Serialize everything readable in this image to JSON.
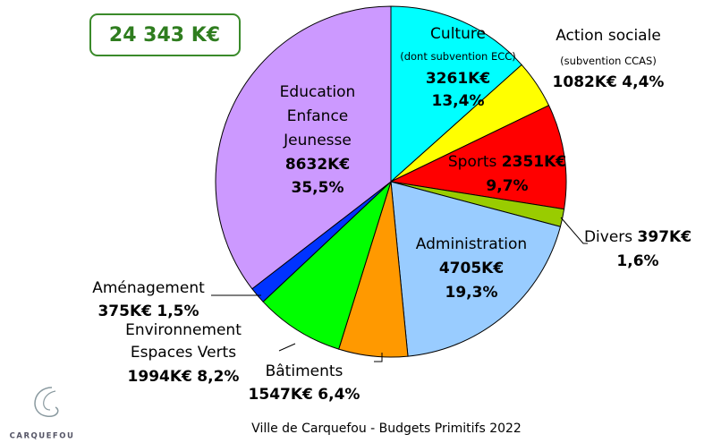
{
  "chart_data": {
    "type": "pie",
    "title": "24 343 K€",
    "footer": "Ville de Carquefou - Budgets Primitifs 2022",
    "logo_text": "CARQUEFOU",
    "categories": [
      [
        "Culture"
      ],
      [
        "Action sociale"
      ],
      [
        "Sports"
      ],
      [
        "Divers"
      ],
      [
        "Administration"
      ],
      [
        "Bâtiments"
      ],
      [
        "Environnement",
        "Espaces Verts"
      ],
      [
        "Aménagement"
      ],
      [
        "Education",
        "Enfance",
        "Jeunesse"
      ]
    ],
    "notes": [
      "(dont subvention ECC)",
      "(subvention CCAS)",
      null,
      null,
      null,
      null,
      null,
      null,
      null
    ],
    "values": [
      3261,
      1082,
      2351,
      397,
      4705,
      1547,
      1994,
      375,
      8632
    ],
    "value_labels": [
      "3261K€",
      "1082K€",
      "2351K€",
      "397K€",
      "4705K€",
      "1547K€",
      "1994K€",
      "375K€",
      "8632K€"
    ],
    "percent_labels": [
      "13,4%",
      "4,4%",
      "9,7%",
      "1,6%",
      "19,3%",
      "6,4%",
      "8,2%",
      "1,5%",
      "35,5%"
    ],
    "colors": [
      "#00ffff",
      "#ffff00",
      "#ff0000",
      "#99cc00",
      "#99ccff",
      "#ff9900",
      "#00ff00",
      "#0033ff",
      "#cc99ff"
    ]
  }
}
